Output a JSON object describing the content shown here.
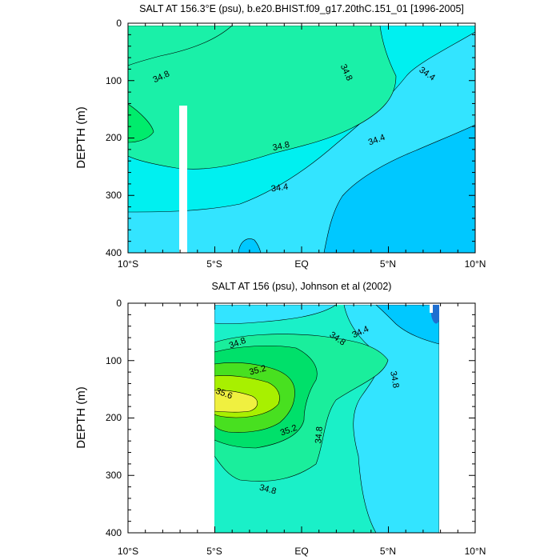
{
  "chart_data": [
    {
      "type": "contour",
      "title": "SALT AT 156.3°E (psu), b.e20.BHIST.f09_g17.20thC.151_01 [1996-2005]",
      "ylabel": "DEPTH (m)",
      "xlim": [
        -10,
        10
      ],
      "ylim": [
        400,
        0
      ],
      "x_ticks": [
        "10°S",
        "5°S",
        "EQ",
        "5°N",
        "10°N"
      ],
      "y_ticks": [
        "0",
        "100",
        "200",
        "300",
        "400"
      ],
      "contour_labels": [
        "34.8",
        "34.8",
        "34.4",
        "34.8",
        "34.4",
        "34.4"
      ],
      "contour_levels": [
        34.2,
        34.4,
        34.6,
        34.8,
        35.0
      ],
      "colors": [
        "#00c8ff",
        "#33e4ff",
        "#00f0f0",
        "#1af0a8",
        "#00ec6c"
      ]
    },
    {
      "type": "contour",
      "title": "SALT AT 156 (psu), Johnson et al (2002)",
      "ylabel": "DEPTH (m)",
      "xlim": [
        -10,
        10
      ],
      "ylim": [
        400,
        0
      ],
      "x_ticks": [
        "10°S",
        "5°S",
        "EQ",
        "5°N",
        "10°N"
      ],
      "y_ticks": [
        "0",
        "100",
        "200",
        "300",
        "400"
      ],
      "contour_labels": [
        "34.8",
        "34.8",
        "34.4",
        "34.8",
        "35.2",
        "35.6",
        "35.2",
        "34.8",
        "34.8"
      ],
      "contour_levels": [
        34.4,
        34.6,
        34.8,
        35.0,
        35.2,
        35.4,
        35.6
      ],
      "colors": [
        "#00c8ff",
        "#33e4ff",
        "#1af0c8",
        "#1aee9c",
        "#00e06a",
        "#48e020",
        "#a8f000",
        "#f0f040"
      ]
    }
  ]
}
